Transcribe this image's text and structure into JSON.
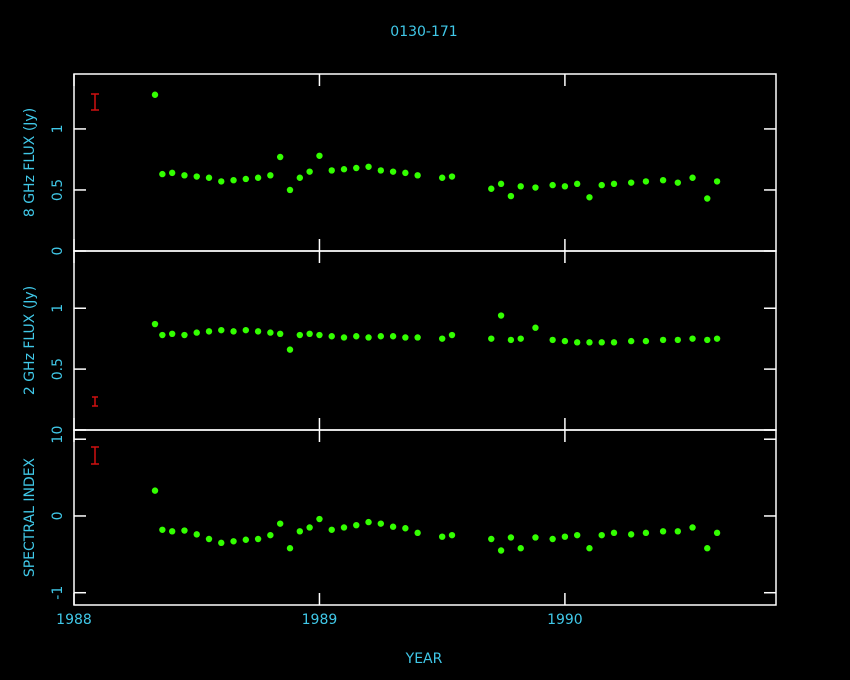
{
  "chart_data": [
    {
      "type": "scatter",
      "title": "0130-171",
      "ylabel": "8 GHz FLUX (Jy)",
      "color": "#33ff00",
      "x": [
        1988.33,
        1988.36,
        1988.4,
        1988.45,
        1988.5,
        1988.55,
        1988.6,
        1988.65,
        1988.7,
        1988.75,
        1988.8,
        1988.84,
        1988.88,
        1988.92,
        1988.96,
        1989.0,
        1989.05,
        1989.1,
        1989.15,
        1989.2,
        1989.25,
        1989.3,
        1989.35,
        1989.4,
        1989.5,
        1989.54,
        1989.7,
        1989.74,
        1989.78,
        1989.82,
        1989.88,
        1989.95,
        1990.0,
        1990.05,
        1990.1,
        1990.15,
        1990.2,
        1990.27,
        1990.33,
        1990.4,
        1990.46,
        1990.52,
        1990.58,
        1990.62
      ],
      "values": [
        1.28,
        0.63,
        0.64,
        0.62,
        0.61,
        0.6,
        0.57,
        0.58,
        0.59,
        0.6,
        0.62,
        0.77,
        0.5,
        0.6,
        0.65,
        0.78,
        0.66,
        0.67,
        0.68,
        0.69,
        0.66,
        0.65,
        0.64,
        0.62,
        0.6,
        0.61,
        0.51,
        0.55,
        0.45,
        0.53,
        0.52,
        0.54,
        0.53,
        0.55,
        0.44,
        0.54,
        0.55,
        0.56,
        0.57,
        0.58,
        0.56,
        0.6,
        0.43,
        0.57
      ],
      "xlim": [
        1988,
        1990.86
      ],
      "xticks": [
        1988,
        1989,
        1990
      ],
      "ylim": [
        0,
        1.45
      ],
      "yticks": [
        0,
        0.5,
        1
      ]
    },
    {
      "type": "scatter",
      "ylabel": "2 GHz FLUX (Jy)",
      "color": "#33ff00",
      "x": [
        1988.33,
        1988.36,
        1988.4,
        1988.45,
        1988.5,
        1988.55,
        1988.6,
        1988.65,
        1988.7,
        1988.75,
        1988.8,
        1988.84,
        1988.88,
        1988.92,
        1988.96,
        1989.0,
        1989.05,
        1989.1,
        1989.15,
        1989.2,
        1989.25,
        1989.3,
        1989.35,
        1989.4,
        1989.5,
        1989.54,
        1989.7,
        1989.74,
        1989.78,
        1989.82,
        1989.88,
        1989.95,
        1990.0,
        1990.05,
        1990.1,
        1990.15,
        1990.2,
        1990.27,
        1990.33,
        1990.4,
        1990.46,
        1990.52,
        1990.58,
        1990.62
      ],
      "values": [
        0.87,
        0.78,
        0.79,
        0.78,
        0.8,
        0.81,
        0.82,
        0.81,
        0.82,
        0.81,
        0.8,
        0.79,
        0.66,
        0.78,
        0.79,
        0.78,
        0.77,
        0.76,
        0.77,
        0.76,
        0.77,
        0.77,
        0.76,
        0.76,
        0.75,
        0.78,
        0.75,
        0.94,
        0.74,
        0.75,
        0.84,
        0.74,
        0.73,
        0.72,
        0.72,
        0.72,
        0.72,
        0.73,
        0.73,
        0.74,
        0.74,
        0.75,
        0.74,
        0.75
      ],
      "xlim": [
        1988,
        1990.86
      ],
      "xticks": [
        1988,
        1989,
        1990
      ],
      "ylim": [
        0,
        1.47
      ],
      "yticks": [
        0,
        0.5,
        1
      ]
    },
    {
      "type": "scatter",
      "ylabel": "SPECTRAL INDEX",
      "xlabel": "YEAR",
      "color": "#33ff00",
      "x": [
        1988.33,
        1988.36,
        1988.4,
        1988.45,
        1988.5,
        1988.55,
        1988.6,
        1988.65,
        1988.7,
        1988.75,
        1988.8,
        1988.84,
        1988.88,
        1988.92,
        1988.96,
        1989.0,
        1989.05,
        1989.1,
        1989.15,
        1989.2,
        1989.25,
        1989.3,
        1989.35,
        1989.4,
        1989.5,
        1989.54,
        1989.7,
        1989.74,
        1989.78,
        1989.82,
        1989.88,
        1989.95,
        1990.0,
        1990.05,
        1990.1,
        1990.15,
        1990.2,
        1990.27,
        1990.33,
        1990.4,
        1990.46,
        1990.52,
        1990.58,
        1990.62
      ],
      "values": [
        0.33,
        -0.18,
        -0.2,
        -0.19,
        -0.24,
        -0.3,
        -0.35,
        -0.33,
        -0.31,
        -0.3,
        -0.25,
        -0.1,
        -0.42,
        -0.2,
        -0.15,
        -0.04,
        -0.18,
        -0.15,
        -0.12,
        -0.08,
        -0.1,
        -0.14,
        -0.16,
        -0.22,
        -0.27,
        -0.25,
        -0.3,
        -0.45,
        -0.28,
        -0.42,
        -0.28,
        -0.3,
        -0.27,
        -0.25,
        -0.42,
        -0.25,
        -0.22,
        -0.24,
        -0.22,
        -0.2,
        -0.2,
        -0.15,
        -0.42,
        -0.22
      ],
      "xlim": [
        1988,
        1990.86
      ],
      "xticks": [
        1988,
        1989,
        1990
      ],
      "ylim": [
        -1.16,
        1.12
      ],
      "yticks": [
        -1,
        0,
        1
      ]
    }
  ]
}
